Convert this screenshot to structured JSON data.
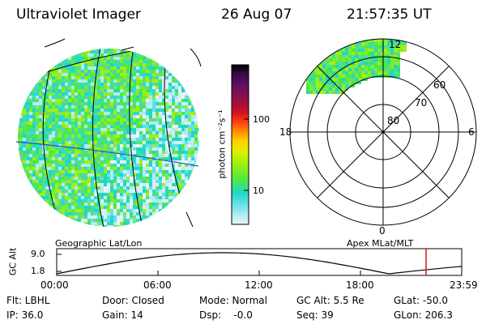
{
  "header": {
    "title": "Ultraviolet Imager",
    "date": "26 Aug 07",
    "time": "21:57:35 UT"
  },
  "left_panel": {
    "label": "Geographic Lat/Lon"
  },
  "right_panel": {
    "label": "Apex MLat/MLT",
    "mlt_labels": [
      "12",
      "18",
      "6",
      "0"
    ],
    "lat_labels": [
      "60",
      "70",
      "80"
    ]
  },
  "colorbar": {
    "unit_label": "photon cm⁻²s⁻¹",
    "ticks": [
      "100",
      "10"
    ],
    "colors": [
      "#000000",
      "#3a0a4a",
      "#6a1060",
      "#a01040",
      "#d01020",
      "#ff4010",
      "#ff9000",
      "#ffd000",
      "#e0f000",
      "#a0f010",
      "#50e840",
      "#20d8c0",
      "#60e0e8",
      "#b0ecf0",
      "#e8f4f8"
    ]
  },
  "alt_plot": {
    "ylabel": "GC Alt",
    "yticks": [
      "9.0",
      "1.8"
    ],
    "xticks": [
      "00:00",
      "06:00",
      "12:00",
      "18:00",
      "23:59"
    ],
    "marker_color": "#e01010"
  },
  "footer": {
    "flt": "Flt: LBHL",
    "ip": "IP: 36.0",
    "door": "Door: Closed",
    "gain": "Gain: 14",
    "mode": "Mode: Normal",
    "dsp": "Dsp:    -0.0",
    "gcalt": "GC Alt: 5.5 Re",
    "seq": "Seq: 39",
    "glat": "GLat: -50.0",
    "glon": "GLon: 206.3"
  }
}
